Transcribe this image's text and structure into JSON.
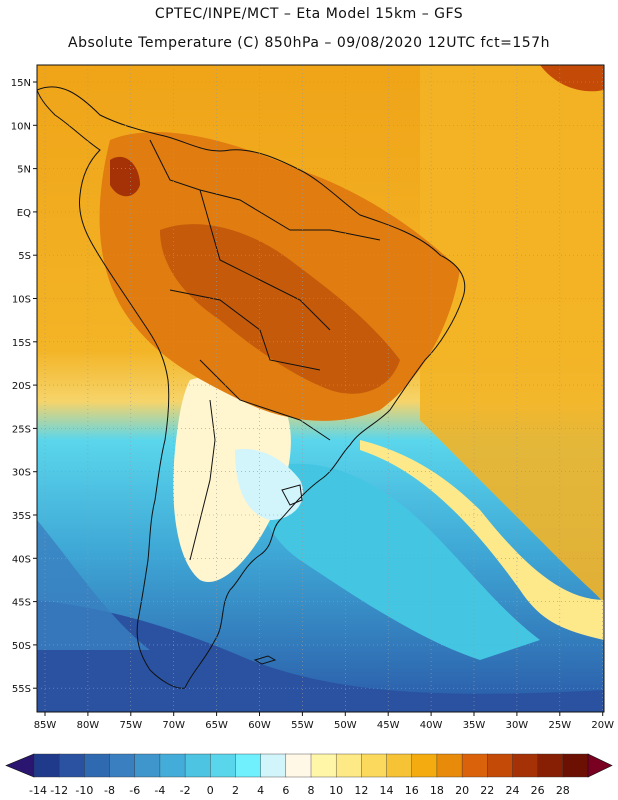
{
  "header": {
    "line1": "CPTEC/INPE/MCT –  Eta Model 15km – GFS",
    "line2": "Absolute Temperature (C) 850hPa – 09/08/2020 12UTC fct=157h"
  },
  "axes": {
    "lat_labels": [
      "15N",
      "10N",
      "5N",
      "EQ",
      "5S",
      "10S",
      "15S",
      "20S",
      "25S",
      "30S",
      "35S",
      "40S",
      "45S",
      "50S",
      "55S"
    ],
    "lon_labels": [
      "85W",
      "80W",
      "75W",
      "70W",
      "65W",
      "60W",
      "55W",
      "50W",
      "45W",
      "40W",
      "35W",
      "30W",
      "25W",
      "20W"
    ]
  },
  "colorbar": {
    "labels": [
      "-14",
      "-12",
      "-10",
      "-8",
      "-6",
      "-4",
      "-2",
      "0",
      "2",
      "4",
      "6",
      "8",
      "10",
      "12",
      "14",
      "16",
      "18",
      "20",
      "22",
      "24",
      "26",
      "28"
    ],
    "colors": [
      "#1f3a8a",
      "#2a52a0",
      "#2f69b0",
      "#3a7fc0",
      "#3f96cc",
      "#44acd8",
      "#4cc4e2",
      "#5ad6ec",
      "#6ff0fc",
      "#d2f4fb",
      "#fff8e6",
      "#fff6a8",
      "#fde985",
      "#fbd95c",
      "#f6c236",
      "#f3ab10",
      "#e88a0a",
      "#d9620a",
      "#c44a08",
      "#a43206",
      "#871f04",
      "#6b1003"
    ],
    "low_arrow_color": "#2a1670",
    "high_arrow_color": "#7a0022"
  },
  "map": {
    "ocean_north_color": "#f3ab10",
    "ocean_south_color": "#3fb6dc",
    "land_warm_color": "#e07c10",
    "land_hot_color": "#c45a0a",
    "cold_color": "#2f69b0",
    "cool_color": "#5ad6ec",
    "pale_color": "#fff6d0"
  }
}
